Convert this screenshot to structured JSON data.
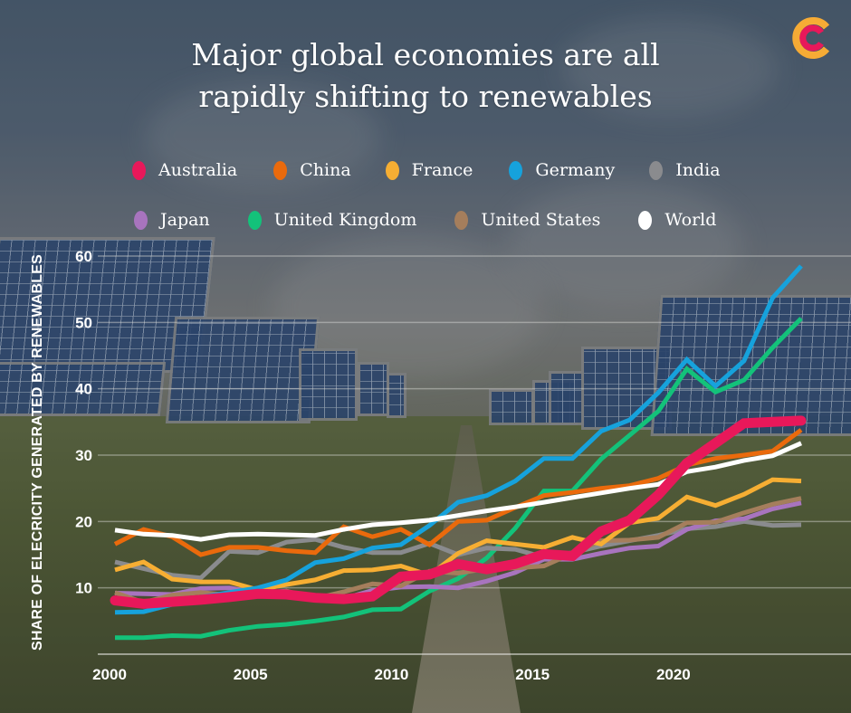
{
  "title_lines": [
    "Major global economies are all",
    "rapidly shifting to renewables"
  ],
  "logo": {
    "name": "conversation-logo",
    "colors": [
      "#f6ab35",
      "#e8185a"
    ]
  },
  "chart_data": {
    "type": "line",
    "title": "Major global economies are all rapidly shifting to renewables",
    "xlabel": "",
    "ylabel": "SHARE OF ELECRICITY GENERATED BY RENEWABLES",
    "x": [
      2000,
      2001,
      2002,
      2003,
      2004,
      2005,
      2006,
      2007,
      2008,
      2009,
      2010,
      2011,
      2012,
      2013,
      2014,
      2015,
      2016,
      2017,
      2018,
      2019,
      2020,
      2021,
      2022,
      2023,
      2024
    ],
    "xlim": [
      2000,
      2024
    ],
    "ylim": [
      0,
      60
    ],
    "xticks": [
      2000,
      2005,
      2010,
      2015,
      2020
    ],
    "xtick_labels": [
      "2000",
      "2005",
      "2010",
      "2015",
      "2020"
    ],
    "yticks": [
      10,
      20,
      30,
      40,
      50,
      60
    ],
    "ytick_labels": [
      "10",
      "20",
      "30",
      "40",
      "50",
      "60"
    ],
    "grid": true,
    "legend_position": "top",
    "series": [
      {
        "name": "Australia",
        "color": "#e8185a",
        "width": "thick",
        "values": [
          8.1,
          7.6,
          7.9,
          8.2,
          8.6,
          9.1,
          9.0,
          8.5,
          8.3,
          8.7,
          11.7,
          12.0,
          13.6,
          12.8,
          13.6,
          15.1,
          14.8,
          18.5,
          20.2,
          24.0,
          28.8,
          31.8,
          34.8,
          35.0,
          35.2
        ]
      },
      {
        "name": "China",
        "color": "#ea6a0c",
        "values": [
          16.6,
          18.8,
          17.7,
          15.0,
          16.1,
          16.1,
          15.6,
          15.3,
          19.2,
          17.7,
          18.8,
          16.5,
          20.0,
          20.2,
          22.1,
          23.9,
          24.4,
          25.0,
          25.4,
          26.5,
          28.5,
          29.5,
          30.0,
          30.6,
          33.8
        ]
      },
      {
        "name": "France",
        "color": "#f6ae33",
        "values": [
          12.7,
          13.9,
          11.3,
          10.9,
          10.9,
          9.7,
          10.5,
          11.2,
          12.6,
          12.7,
          13.3,
          11.9,
          15.2,
          17.1,
          16.6,
          16.1,
          17.6,
          16.6,
          19.8,
          20.5,
          23.7,
          22.4,
          24.1,
          26.3,
          26.1
        ]
      },
      {
        "name": "Germany",
        "color": "#16a2dc",
        "values": [
          6.3,
          6.4,
          7.5,
          8.6,
          9.3,
          10.0,
          11.2,
          13.8,
          14.4,
          16.0,
          16.5,
          19.4,
          22.9,
          23.9,
          26.1,
          29.5,
          29.5,
          33.6,
          35.3,
          39.4,
          44.4,
          40.4,
          44.2,
          53.7,
          58.5
        ]
      },
      {
        "name": "India",
        "color": "#8a8b8e",
        "values": [
          13.9,
          12.9,
          11.9,
          11.5,
          15.5,
          15.3,
          16.9,
          17.3,
          16.1,
          15.3,
          15.3,
          16.7,
          15.0,
          16.0,
          15.8,
          14.6,
          15.3,
          16.3,
          17.1,
          17.9,
          18.9,
          19.2,
          20.0,
          19.4,
          19.5
        ]
      },
      {
        "name": "Japan",
        "color": "#a874be",
        "values": [
          9.2,
          9.1,
          9.0,
          9.9,
          10.0,
          9.2,
          9.5,
          8.2,
          8.4,
          9.6,
          10.1,
          10.2,
          10.0,
          11.0,
          12.3,
          14.3,
          14.3,
          15.2,
          16.0,
          16.3,
          18.8,
          20.1,
          20.4,
          21.9,
          22.8
        ]
      },
      {
        "name": "United Kingdom",
        "color": "#13c27a",
        "values": [
          2.5,
          2.5,
          2.8,
          2.7,
          3.6,
          4.2,
          4.5,
          5.0,
          5.6,
          6.7,
          6.8,
          9.5,
          11.4,
          14.5,
          19.0,
          24.6,
          24.6,
          29.4,
          33.0,
          36.6,
          43.0,
          39.5,
          41.3,
          46.2,
          50.6
        ]
      },
      {
        "name": "United States",
        "color": "#a57e5c",
        "values": [
          9.3,
          7.8,
          8.9,
          9.3,
          8.9,
          8.9,
          9.5,
          8.4,
          9.4,
          10.6,
          10.3,
          12.5,
          12.2,
          12.9,
          13.0,
          13.3,
          15.2,
          17.1,
          17.2,
          17.6,
          19.8,
          19.9,
          21.3,
          22.6,
          23.5
        ]
      },
      {
        "name": "World",
        "color": "#ffffff",
        "values": [
          18.7,
          18.1,
          17.9,
          17.3,
          18.0,
          18.1,
          18.0,
          17.9,
          18.8,
          19.5,
          19.8,
          20.2,
          20.9,
          21.6,
          22.2,
          22.9,
          23.6,
          24.3,
          25.0,
          25.6,
          27.5,
          28.2,
          29.2,
          29.9,
          31.8
        ]
      }
    ]
  },
  "legend": {
    "row1": [
      {
        "label": "Australia",
        "color": "#e8185a"
      },
      {
        "label": "China",
        "color": "#ea6a0c"
      },
      {
        "label": "France",
        "color": "#f6ae33"
      },
      {
        "label": "Germany",
        "color": "#16a2dc"
      },
      {
        "label": "India",
        "color": "#8a8b8e"
      }
    ],
    "row2": [
      {
        "label": "Japan",
        "color": "#a874be"
      },
      {
        "label": "United Kingdom",
        "color": "#13c27a"
      },
      {
        "label": "United States",
        "color": "#a57e5c"
      },
      {
        "label": "World",
        "color": "#ffffff"
      }
    ]
  }
}
